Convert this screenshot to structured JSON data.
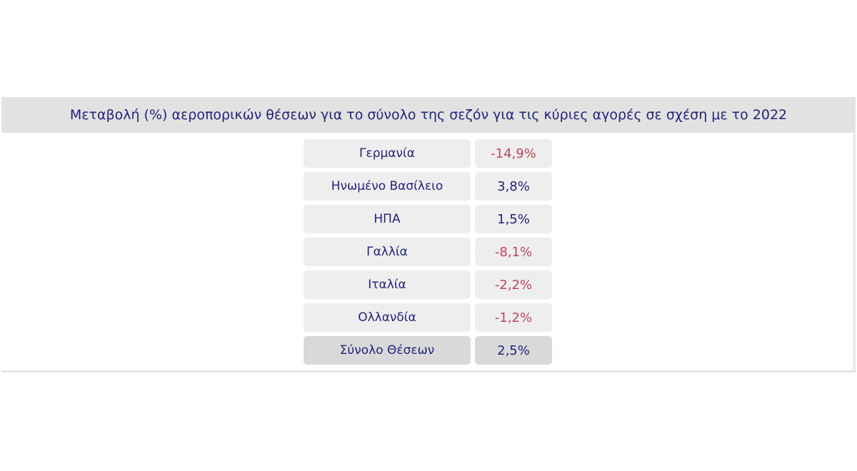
{
  "chart_data": {
    "type": "table",
    "title": "Μεταβολή (%) αεροπορικών θέσεων για το σύνολο της σεζόν για τις κύριες αγορές σε σχέση με το 2022",
    "rows": [
      {
        "label": "Γερμανία",
        "value": -14.9,
        "display": "-14,9%"
      },
      {
        "label": "Ηνωμένο Βασίλειο",
        "value": 3.8,
        "display": "3,8%"
      },
      {
        "label": "ΗΠΑ",
        "value": 1.5,
        "display": "1,5%"
      },
      {
        "label": "Γαλλία",
        "value": -8.1,
        "display": "-8,1%"
      },
      {
        "label": "Ιταλία",
        "value": -2.2,
        "display": "-2,2%"
      },
      {
        "label": "Ολλανδία",
        "value": -1.2,
        "display": "-1,2%"
      }
    ],
    "total": {
      "label": "Σύνολο Θέσεων",
      "value": 2.5,
      "display": "2,5%"
    },
    "colors": {
      "positive": "#23237a",
      "negative": "#b8475a",
      "title": "#23237a"
    }
  }
}
